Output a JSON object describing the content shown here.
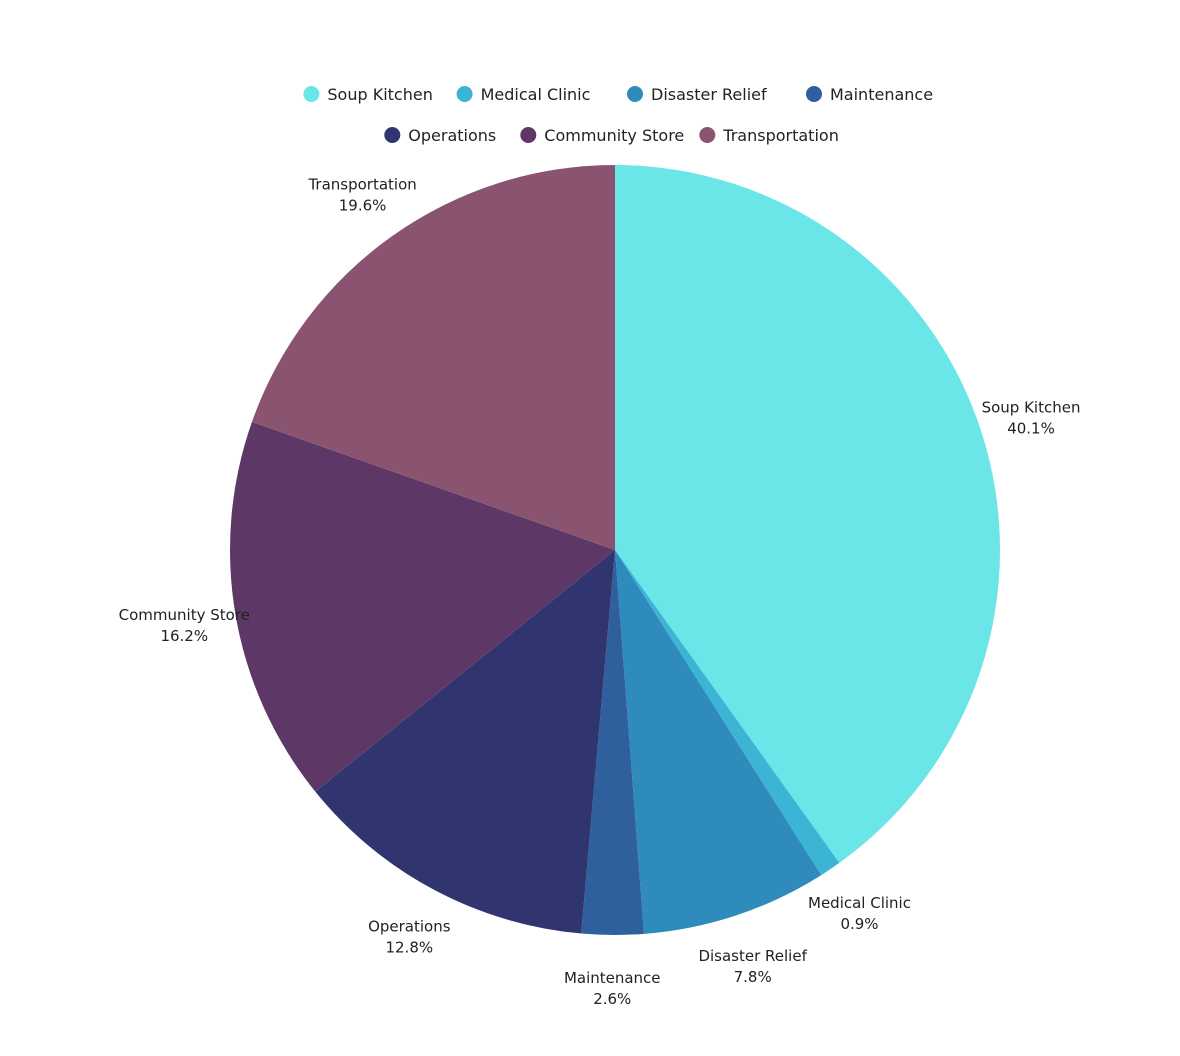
{
  "chart_data": {
    "type": "pie",
    "title": "",
    "legend_position": "top",
    "start_angle": "12 o'clock",
    "direction": "clockwise",
    "slices": [
      {
        "label": "Soup Kitchen",
        "value": 40.1,
        "value_label": "40.1%",
        "color": "#6ae5e8"
      },
      {
        "label": "Medical Clinic",
        "value": 0.9,
        "value_label": "0.9%",
        "color": "#3cb4d6"
      },
      {
        "label": "Disaster Relief",
        "value": 7.8,
        "value_label": "7.8%",
        "color": "#2f8bbb"
      },
      {
        "label": "Maintenance",
        "value": 2.6,
        "value_label": "2.6%",
        "color": "#305f9d"
      },
      {
        "label": "Operations",
        "value": 12.8,
        "value_label": "12.8%",
        "color": "#30356f"
      },
      {
        "label": "Community Store",
        "value": 16.2,
        "value_label": "16.2%",
        "color": "#5d3866"
      },
      {
        "label": "Transportation",
        "value": 19.6,
        "value_label": "19.6%",
        "color": "#8a5471"
      }
    ]
  }
}
